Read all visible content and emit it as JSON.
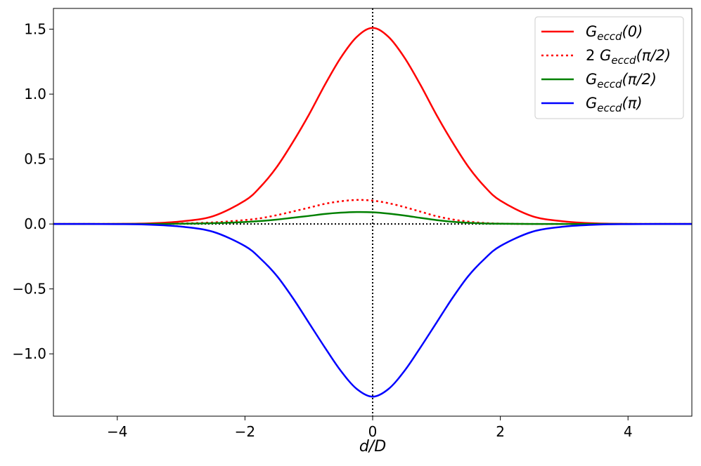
{
  "chart_data": {
    "type": "line",
    "title": "",
    "xlabel": "d/D",
    "ylabel": "",
    "xlim": [
      -5,
      5
    ],
    "ylim": [
      -1.48,
      1.66
    ],
    "xticks": [
      -4,
      -2,
      0,
      2,
      4
    ],
    "yticks": [
      -1.0,
      -0.5,
      0.0,
      0.5,
      1.0,
      1.5
    ],
    "xtick_labels": [
      "−4",
      "−2",
      "0",
      "2",
      "4"
    ],
    "ytick_labels": [
      "−1.0",
      "−0.5",
      "0.0",
      "0.5",
      "1.0",
      "1.5"
    ],
    "grid": false,
    "legend_position": "top-right",
    "reference_lines": {
      "x": 0,
      "y": 0,
      "style": "dotted",
      "color": "#000000"
    },
    "x": [
      -5.0,
      -4.5,
      -4.0,
      -3.5,
      -3.0,
      -2.5,
      -2.0,
      -1.75,
      -1.5,
      -1.25,
      -1.0,
      -0.75,
      -0.5,
      -0.25,
      0.0,
      0.25,
      0.5,
      0.75,
      1.0,
      1.25,
      1.5,
      1.75,
      2.0,
      2.5,
      3.0,
      3.5,
      4.0,
      4.5,
      5.0
    ],
    "series": [
      {
        "name": "G_eccd(0)",
        "legend_main": "G",
        "legend_sub": "eccd",
        "legend_arg": "(0)",
        "legend_prefix": "",
        "color": "#ff0000",
        "style": "solid",
        "values": [
          0.0,
          0.0,
          0.001,
          0.005,
          0.02,
          0.06,
          0.18,
          0.29,
          0.44,
          0.63,
          0.84,
          1.07,
          1.28,
          1.44,
          1.51,
          1.44,
          1.28,
          1.07,
          0.84,
          0.63,
          0.44,
          0.29,
          0.18,
          0.06,
          0.02,
          0.005,
          0.001,
          0.0,
          0.0
        ]
      },
      {
        "name": "2 G_eccd(π/2)",
        "legend_main": "G",
        "legend_sub": "eccd",
        "legend_arg": "(π/2)",
        "legend_prefix": "2",
        "color": "#ff0000",
        "style": "dotted",
        "values": [
          0.0,
          0.0,
          0.0,
          0.001,
          0.004,
          0.012,
          0.03,
          0.045,
          0.068,
          0.096,
          0.125,
          0.155,
          0.175,
          0.185,
          0.18,
          0.16,
          0.13,
          0.095,
          0.06,
          0.035,
          0.018,
          0.008,
          0.003,
          0.0,
          0.0,
          0.0,
          0.0,
          0.0,
          0.0
        ]
      },
      {
        "name": "G_eccd(π/2)",
        "legend_main": "G",
        "legend_sub": "eccd",
        "legend_arg": "(π/2)",
        "legend_prefix": "",
        "color": "#008000",
        "style": "solid",
        "values": [
          0.0,
          0.0,
          0.0,
          0.0,
          0.002,
          0.006,
          0.015,
          0.023,
          0.034,
          0.048,
          0.062,
          0.077,
          0.087,
          0.092,
          0.09,
          0.08,
          0.065,
          0.047,
          0.03,
          0.017,
          0.009,
          0.004,
          0.002,
          0.0,
          0.0,
          0.0,
          0.0,
          0.0,
          0.0
        ]
      },
      {
        "name": "G_eccd(π)",
        "legend_main": "G",
        "legend_sub": "eccd",
        "legend_arg": "(π)",
        "legend_prefix": "",
        "color": "#0000ff",
        "style": "solid",
        "values": [
          0.0,
          0.0,
          -0.001,
          -0.005,
          -0.02,
          -0.06,
          -0.17,
          -0.27,
          -0.4,
          -0.57,
          -0.76,
          -0.95,
          -1.13,
          -1.27,
          -1.33,
          -1.27,
          -1.13,
          -0.95,
          -0.76,
          -0.57,
          -0.4,
          -0.27,
          -0.17,
          -0.06,
          -0.02,
          -0.005,
          -0.001,
          0.0,
          0.0
        ]
      }
    ]
  }
}
